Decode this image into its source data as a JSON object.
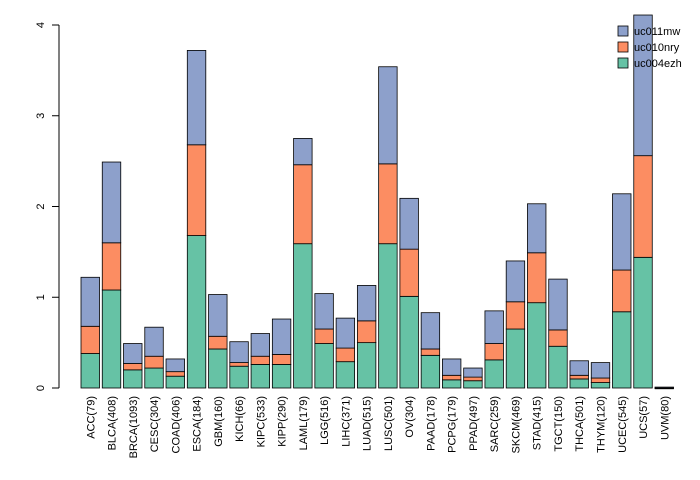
{
  "chart_data": {
    "type": "bar",
    "stacked": true,
    "title": "",
    "xlabel": "",
    "ylabel": "",
    "ylim": [
      0,
      4
    ],
    "yticks": [
      0,
      1,
      2,
      3,
      4
    ],
    "grid": false,
    "legend_position": "top-right",
    "categories": [
      "ACC(79)",
      "BLCA(408)",
      "BRCA(1093)",
      "CESC(304)",
      "COAD(406)",
      "ESCA(184)",
      "GBM(160)",
      "KICH(66)",
      "KIPC(533)",
      "KIPP(290)",
      "LAML(179)",
      "LGG(516)",
      "LIHC(371)",
      "LUAD(515)",
      "LUSC(501)",
      "OV(304)",
      "PAAD(178)",
      "PCPG(179)",
      "PPAD(497)",
      "SARC(259)",
      "SKCM(469)",
      "STAD(415)",
      "TGCT(150)",
      "THCA(501)",
      "THYM(120)",
      "UCEC(545)",
      "UCS(57)",
      "UVM(80)"
    ],
    "series": [
      {
        "name": "uc004ezh",
        "color": "#66c2a5",
        "values": [
          0.38,
          1.08,
          0.2,
          0.22,
          0.13,
          1.68,
          0.43,
          0.24,
          0.26,
          0.26,
          1.59,
          0.49,
          0.29,
          0.5,
          1.59,
          1.01,
          0.36,
          0.09,
          0.08,
          0.31,
          0.65,
          0.94,
          0.46,
          0.1,
          0.06,
          0.84,
          1.44,
          0.0
        ]
      },
      {
        "name": "uc010nry",
        "color": "#fc8d62",
        "values": [
          0.3,
          0.52,
          0.07,
          0.13,
          0.05,
          1.0,
          0.14,
          0.04,
          0.09,
          0.11,
          0.87,
          0.16,
          0.15,
          0.24,
          0.88,
          0.52,
          0.07,
          0.05,
          0.04,
          0.18,
          0.3,
          0.55,
          0.18,
          0.04,
          0.05,
          0.46,
          1.12,
          0.0
        ]
      },
      {
        "name": "uc011mw",
        "color": "#8da0cb",
        "values": [
          0.54,
          0.89,
          0.22,
          0.32,
          0.14,
          1.04,
          0.46,
          0.23,
          0.25,
          0.39,
          0.29,
          0.39,
          0.33,
          0.39,
          1.07,
          0.56,
          0.4,
          0.18,
          0.1,
          0.36,
          0.45,
          0.54,
          0.56,
          0.16,
          0.17,
          0.84,
          1.55,
          0.01
        ]
      }
    ],
    "legend_order": [
      "uc011mw",
      "uc010nry",
      "uc004ezh"
    ]
  }
}
